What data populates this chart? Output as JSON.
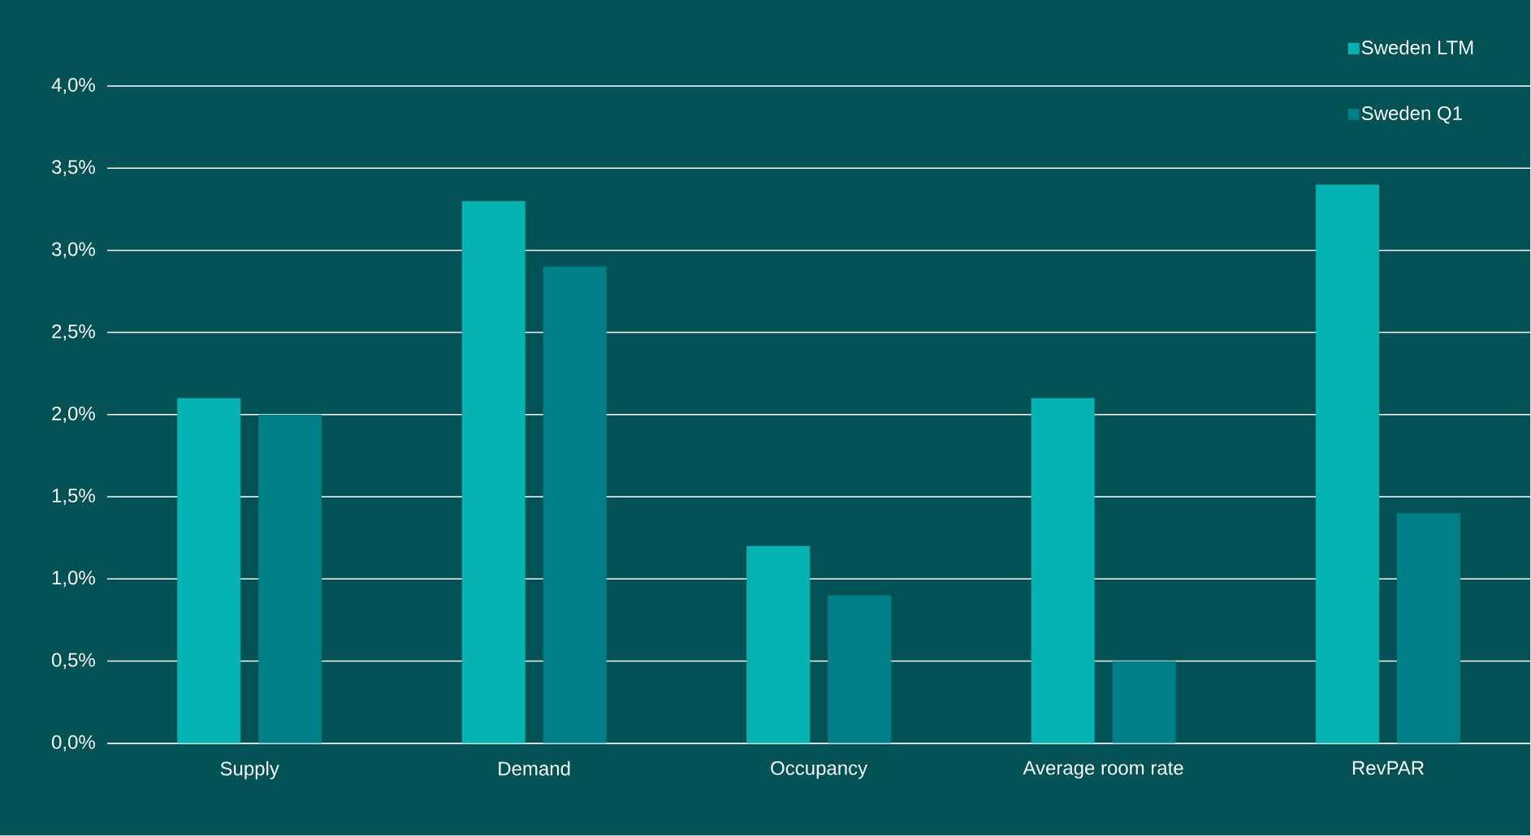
{
  "chart_data": {
    "type": "bar",
    "categories": [
      "Supply",
      "Demand",
      "Occupancy",
      "Average room rate",
      "RevPAR"
    ],
    "series": [
      {
        "name": "Sweden LTM",
        "color": "#05b3b3",
        "values": [
          2.1,
          3.3,
          1.2,
          2.1,
          3.4
        ]
      },
      {
        "name": "Sweden Q1",
        "color": "#007f87",
        "values": [
          2.0,
          2.9,
          0.9,
          0.5,
          1.4
        ]
      }
    ],
    "ylim": [
      0,
      4
    ],
    "yticks": [
      {
        "value": 0,
        "label": "0,0%"
      },
      {
        "value": 0.5,
        "label": "0,5%"
      },
      {
        "value": 1,
        "label": "1,0%"
      },
      {
        "value": 1.5,
        "label": "1,5%"
      },
      {
        "value": 2,
        "label": "2,0%"
      },
      {
        "value": 2.5,
        "label": "2,5%"
      },
      {
        "value": 3,
        "label": "3,0%"
      },
      {
        "value": 3.5,
        "label": "3,5%"
      },
      {
        "value": 4,
        "label": "4,0%"
      }
    ],
    "grid": "y",
    "legend": "top right"
  }
}
